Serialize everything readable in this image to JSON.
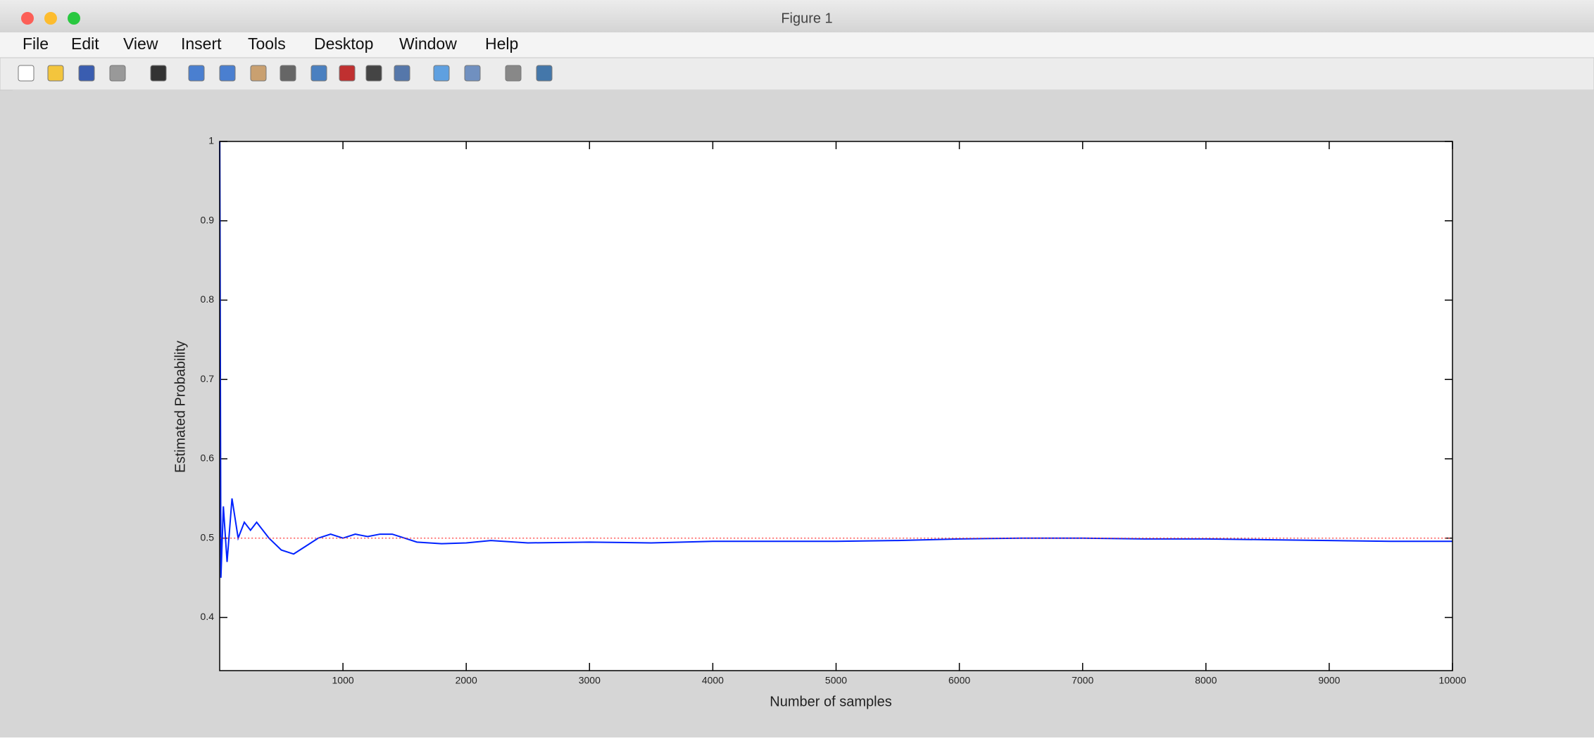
{
  "window_title": "Figure 1",
  "menu": [
    "File",
    "Edit",
    "View",
    "Insert",
    "Tools",
    "Desktop",
    "Window",
    "Help"
  ],
  "chart_data": {
    "type": "line",
    "xlabel": "Number of samples",
    "ylabel": "Estimated Probability",
    "x": [
      1,
      10,
      30,
      60,
      100,
      150,
      200,
      250,
      300,
      400,
      500,
      600,
      700,
      800,
      900,
      1000,
      1100,
      1200,
      1300,
      1400,
      1500,
      1600,
      1800,
      2000,
      2200,
      2500,
      3000,
      3500,
      4000,
      4500,
      5000,
      5500,
      6000,
      6500,
      7000,
      7500,
      8000,
      8500,
      9000,
      9500,
      10000
    ],
    "series": [
      {
        "color": "#0022ff",
        "linestyle": "solid",
        "values": [
          1.0,
          0.45,
          0.54,
          0.47,
          0.55,
          0.5,
          0.52,
          0.51,
          0.52,
          0.5,
          0.485,
          0.48,
          0.49,
          0.5,
          0.505,
          0.5,
          0.505,
          0.502,
          0.505,
          0.505,
          0.5,
          0.495,
          0.493,
          0.494,
          0.497,
          0.494,
          0.495,
          0.494,
          0.496,
          0.496,
          0.496,
          0.497,
          0.499,
          0.5,
          0.5,
          0.499,
          0.499,
          0.498,
          0.497,
          0.496,
          0.496
        ]
      },
      {
        "color": "#ff3333",
        "linestyle": "dotted",
        "values": [
          0.5,
          0.5,
          0.5,
          0.5,
          0.5,
          0.5,
          0.5,
          0.5,
          0.5,
          0.5,
          0.5,
          0.5,
          0.5,
          0.5,
          0.5,
          0.5,
          0.5,
          0.5,
          0.5,
          0.5,
          0.5,
          0.5,
          0.5,
          0.5,
          0.5,
          0.5,
          0.5,
          0.5,
          0.5,
          0.5,
          0.5,
          0.5,
          0.5,
          0.5,
          0.5,
          0.5,
          0.5,
          0.5,
          0.5,
          0.5,
          0.5
        ]
      }
    ],
    "xlim": [
      0,
      10000
    ],
    "xticks": [
      1000,
      2000,
      3000,
      4000,
      5000,
      6000,
      7000,
      8000,
      9000,
      10000
    ],
    "ylim": [
      0.333,
      1
    ],
    "yticks": [
      0.4,
      0.5,
      0.6,
      0.7,
      0.8,
      0.9,
      1
    ]
  }
}
